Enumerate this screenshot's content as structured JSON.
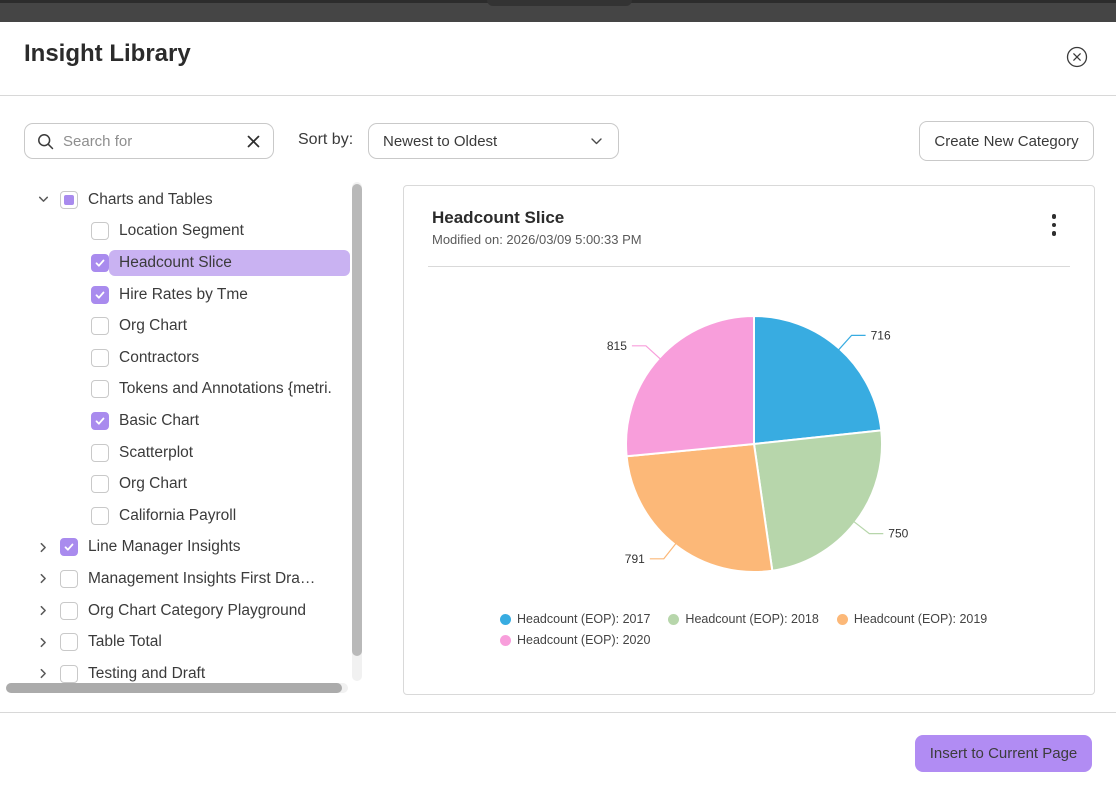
{
  "dialog": {
    "title": "Insight Library"
  },
  "toolbar": {
    "search_placeholder": "Search for",
    "sort_label": "Sort by:",
    "sort_value": "Newest to Oldest",
    "create_category_label": "Create New Category"
  },
  "tree": {
    "accent_color": "#a98bee",
    "selected_row_color": "#c9b2f2",
    "items": [
      {
        "label": "Charts and Tables",
        "level": 0,
        "chevron": "down",
        "checked": "indeterminate"
      },
      {
        "label": "Location Segment",
        "level": 1,
        "checked": false
      },
      {
        "label": "Headcount Slice",
        "level": 1,
        "checked": true,
        "selected": true
      },
      {
        "label": "Hire Rates by Tme",
        "level": 1,
        "checked": true
      },
      {
        "label": "Org Chart",
        "level": 1,
        "checked": false
      },
      {
        "label": "Contractors",
        "level": 1,
        "checked": false
      },
      {
        "label": "Tokens and Annotations {metri.",
        "level": 1,
        "checked": false
      },
      {
        "label": "Basic Chart",
        "level": 1,
        "checked": true
      },
      {
        "label": "Scatterplot",
        "level": 1,
        "checked": false
      },
      {
        "label": "Org Chart",
        "level": 1,
        "checked": false
      },
      {
        "label": "California Payroll",
        "level": 1,
        "checked": false
      },
      {
        "label": "Line Manager Insights",
        "level": 0,
        "chevron": "right",
        "checked": true
      },
      {
        "label": "Management Insights First Dra…",
        "level": 0,
        "chevron": "right",
        "checked": false
      },
      {
        "label": "Org Chart Category Playground",
        "level": 0,
        "chevron": "right",
        "checked": false
      },
      {
        "label": "Table Total",
        "level": 0,
        "chevron": "right",
        "checked": false
      },
      {
        "label": "Testing and Draft",
        "level": 0,
        "chevron": "right",
        "checked": false
      }
    ]
  },
  "card": {
    "title": "Headcount Slice",
    "modified": "Modified on: 2026/03/09 5:00:33 PM"
  },
  "chart_data": {
    "type": "pie",
    "title": "Headcount Slice",
    "labels": [
      "Headcount (EOP): 2017",
      "Headcount (EOP): 2018",
      "Headcount (EOP): 2019",
      "Headcount (EOP): 2020"
    ],
    "values": [
      716,
      750,
      791,
      815
    ],
    "data_labels": [
      "716",
      "750",
      "791",
      "815"
    ],
    "colors": [
      "#38ace1",
      "#b7d6ab",
      "#fcb878",
      "#f89edb"
    ],
    "start_angle": "12-oclock",
    "direction": "clockwise",
    "legend_position": "bottom"
  },
  "footer": {
    "insert_label": "Insert to Current Page",
    "button_color": "#b18cf3"
  }
}
